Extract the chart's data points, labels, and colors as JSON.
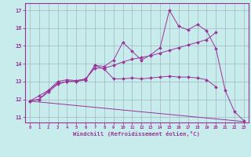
{
  "xlabel": "Windchill (Refroidissement éolien,°C)",
  "bg_color": "#c8ecec",
  "line_color": "#993399",
  "grid_color": "#99aabb",
  "ylim": [
    10.7,
    17.4
  ],
  "xlim": [
    -0.5,
    23.5
  ],
  "yticks": [
    11,
    12,
    13,
    14,
    15,
    16,
    17
  ],
  "xticks": [
    0,
    1,
    2,
    3,
    4,
    5,
    6,
    7,
    8,
    9,
    10,
    11,
    12,
    13,
    14,
    15,
    16,
    17,
    18,
    19,
    20,
    21,
    22,
    23
  ],
  "line1_x": [
    0,
    1,
    2,
    3,
    4,
    5,
    6,
    7,
    8,
    9,
    10,
    11,
    12,
    13,
    14,
    15,
    16,
    17,
    18,
    19,
    20,
    21,
    22,
    23
  ],
  "line1_y": [
    11.9,
    12.2,
    12.5,
    13.0,
    13.1,
    13.05,
    13.1,
    13.9,
    13.85,
    14.2,
    15.2,
    14.7,
    14.2,
    14.5,
    14.9,
    17.0,
    16.1,
    15.9,
    16.2,
    15.85,
    14.85,
    12.5,
    11.3,
    10.8
  ],
  "line2_x": [
    0,
    1,
    2,
    3,
    4,
    5,
    6,
    7,
    8,
    9,
    10,
    11,
    12,
    13,
    14,
    15,
    16,
    17,
    18,
    19,
    20
  ],
  "line2_y": [
    11.9,
    12.0,
    12.4,
    12.85,
    13.0,
    13.05,
    13.15,
    13.75,
    13.75,
    13.9,
    14.1,
    14.25,
    14.35,
    14.45,
    14.6,
    14.75,
    14.9,
    15.05,
    15.2,
    15.35,
    15.75
  ],
  "line3_x": [
    0,
    1,
    2,
    3,
    4,
    5,
    6,
    7,
    8,
    9,
    10,
    11,
    12,
    13,
    14,
    15,
    16,
    17,
    18,
    19,
    20
  ],
  "line3_y": [
    11.9,
    12.0,
    12.5,
    12.9,
    13.0,
    13.0,
    13.1,
    13.9,
    13.7,
    13.15,
    13.15,
    13.2,
    13.15,
    13.2,
    13.25,
    13.3,
    13.25,
    13.25,
    13.2,
    13.1,
    12.7
  ],
  "line4_x": [
    0,
    23
  ],
  "line4_y": [
    11.9,
    10.75
  ]
}
